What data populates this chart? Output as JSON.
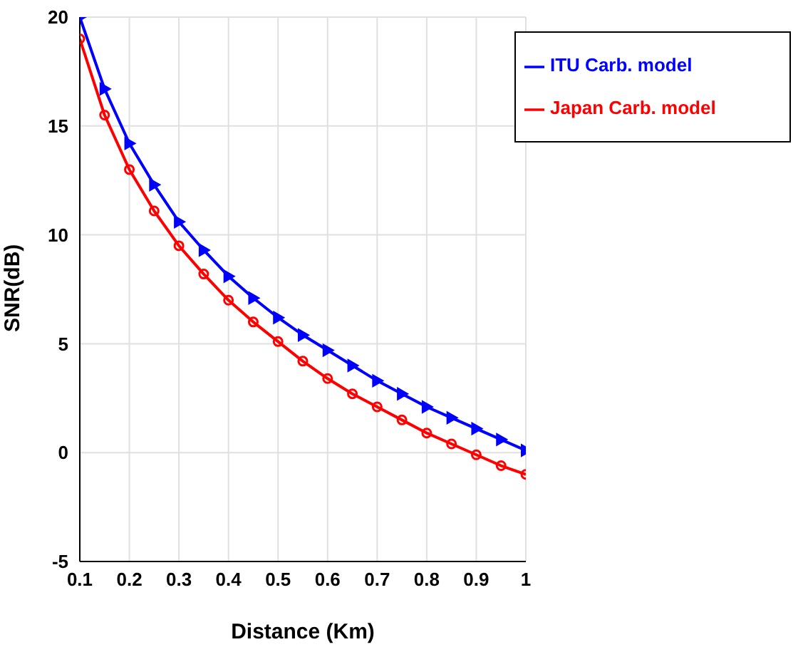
{
  "chart_data": {
    "type": "line",
    "xlabel": "Distance (Km)",
    "ylabel": "SNR(dB)",
    "x": [
      0.1,
      0.15,
      0.2,
      0.25,
      0.3,
      0.35,
      0.4,
      0.45,
      0.5,
      0.55,
      0.6,
      0.65,
      0.7,
      0.75,
      0.8,
      0.85,
      0.9,
      0.95,
      1.0
    ],
    "series": [
      {
        "name": "ITU Carb. model",
        "color": "#0000ff",
        "marker": "triangle",
        "values": [
          20,
          16.7,
          14.2,
          12.3,
          10.6,
          9.3,
          8.1,
          7.1,
          6.2,
          5.4,
          4.7,
          4.0,
          3.3,
          2.7,
          2.1,
          1.6,
          1.1,
          0.6,
          0.1
        ]
      },
      {
        "name": "Japan Carb. model",
        "color": "#ff0000",
        "marker": "circle",
        "values": [
          19,
          15.5,
          13,
          11.1,
          9.5,
          8.2,
          7.0,
          6.0,
          5.1,
          4.2,
          3.4,
          2.7,
          2.1,
          1.5,
          0.9,
          0.4,
          -0.1,
          -0.6,
          -1.0
        ]
      }
    ],
    "xlim": [
      0.1,
      1
    ],
    "xticks": [
      0.1,
      0.2,
      0.3,
      0.4,
      0.5,
      0.6,
      0.7,
      0.8,
      0.9,
      1
    ],
    "ylim": [
      -5,
      20
    ],
    "yticks": [
      -5,
      0,
      5,
      10,
      15,
      20
    ],
    "grid": true,
    "legend": "top right"
  }
}
